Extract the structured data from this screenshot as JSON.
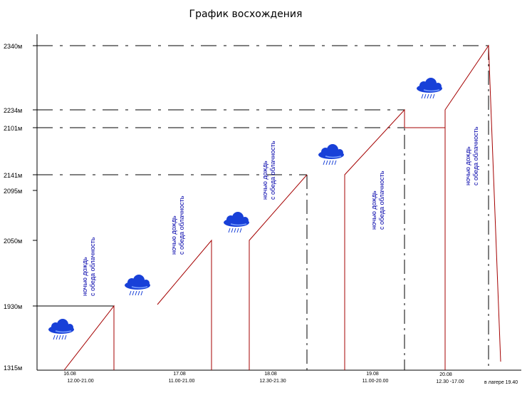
{
  "chart_data": {
    "type": "line",
    "title": "График восхождения",
    "y_ticks": [
      "2340м",
      "2234м",
      "2101м",
      "2141м",
      "2095м",
      "2050м",
      "1930м",
      "1315м"
    ],
    "days": [
      {
        "date": "16.08",
        "time": "12.00-21.00"
      },
      {
        "date": "17.08",
        "time": "11.00-21.00"
      },
      {
        "date": "18.08",
        "time": "12.30-21.30"
      },
      {
        "date": "19.08",
        "time": "11.00-20.00"
      },
      {
        "date": "20.08",
        "time": "12.30 -17.00"
      }
    ],
    "end_note": "в лагере 19.40",
    "weather_notes": [
      [
        "ночью дождь",
        "с обеда облачность"
      ],
      [
        "ночью дождь",
        "с обеда облачность"
      ],
      [
        "ночью дождь",
        "с обеда облачность"
      ],
      [
        "ночью дождь",
        "с обеда облачность"
      ],
      [
        "ночью дождь",
        "с обеда облачность"
      ]
    ],
    "colors": {
      "climb": "#a40000",
      "cloud": "#1840d8",
      "note": "#0000aa",
      "axis": "#000000"
    }
  }
}
